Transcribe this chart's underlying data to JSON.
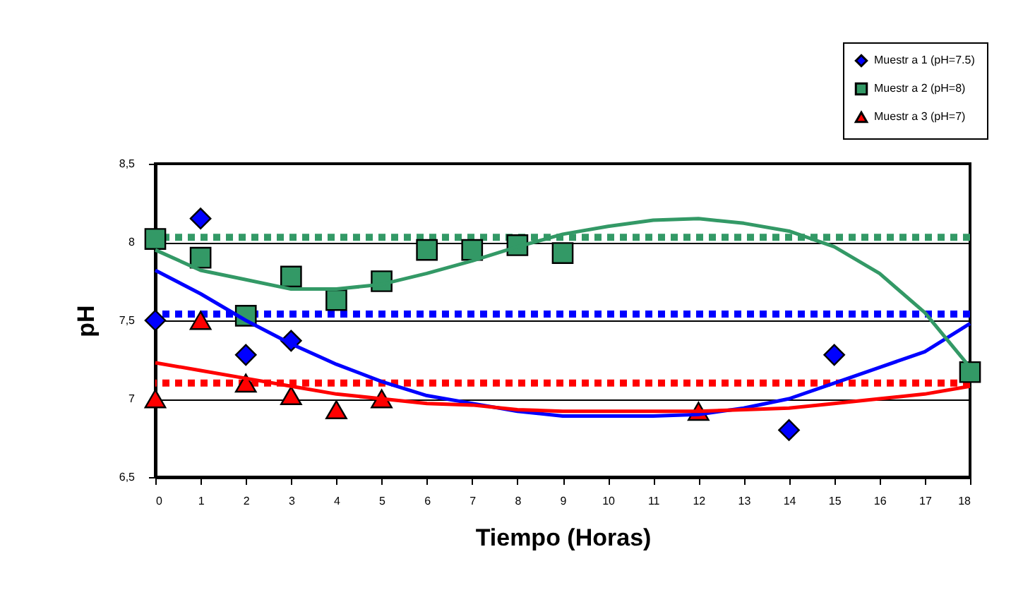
{
  "chart_data": {
    "type": "scatter",
    "xlabel": "Tiempo (Horas)",
    "ylabel": "pH",
    "xlim": [
      0,
      18
    ],
    "xticks": [
      0,
      1,
      2,
      3,
      4,
      5,
      6,
      7,
      8,
      9,
      10,
      11,
      12,
      13,
      14,
      15,
      16,
      17,
      18
    ],
    "ylim": [
      6.5,
      8.5
    ],
    "yticks": [
      {
        "value": 6.5,
        "label": "6,5"
      },
      7,
      {
        "value": 7.5,
        "label": "7,5"
      },
      8,
      {
        "value": 8.5,
        "label": "8,5"
      }
    ],
    "grid": "y",
    "legend": "top right",
    "series": [
      {
        "name": "Muestr a 1 (pH=7.5)",
        "color": "#0000ff",
        "marker": "diamond",
        "x": [
          0,
          1,
          2,
          3,
          14,
          15
        ],
        "values": [
          7.5,
          8.15,
          7.28,
          7.37,
          6.8,
          7.28
        ]
      },
      {
        "name": "Muestr a 2 (pH=8)",
        "color": "#339966",
        "marker": "square",
        "x": [
          0,
          1,
          2,
          3,
          4,
          5,
          6,
          7,
          8,
          9,
          18
        ],
        "values": [
          8.02,
          7.9,
          7.53,
          7.78,
          7.63,
          7.75,
          7.95,
          7.95,
          7.98,
          7.93,
          7.17
        ]
      },
      {
        "name": "Muestr a 3 (pH=7)",
        "color": "#ff0000",
        "marker": "triangle",
        "x": [
          0,
          1,
          2,
          3,
          4,
          5,
          12
        ],
        "values": [
          7.0,
          7.5,
          7.1,
          7.02,
          6.93,
          7.0,
          6.92
        ]
      },
      {
        "type": "line",
        "color": "#0000ff",
        "x": [
          0,
          1,
          2,
          3,
          4,
          5,
          6,
          7,
          8,
          9,
          10,
          11,
          12,
          13,
          14,
          15,
          16,
          17,
          18
        ],
        "values": [
          7.82,
          7.67,
          7.5,
          7.35,
          7.22,
          7.11,
          7.02,
          6.97,
          6.92,
          6.89,
          6.89,
          6.89,
          6.9,
          6.94,
          7.0,
          7.1,
          7.2,
          7.3,
          7.48
        ]
      },
      {
        "type": "line",
        "color": "#339966",
        "x": [
          0,
          1,
          2,
          3,
          4,
          5,
          6,
          7,
          8,
          9,
          10,
          11,
          12,
          13,
          14,
          15,
          16,
          17,
          18
        ],
        "values": [
          7.95,
          7.82,
          7.76,
          7.7,
          7.7,
          7.73,
          7.8,
          7.88,
          7.97,
          8.05,
          8.1,
          8.14,
          8.15,
          8.12,
          8.07,
          7.97,
          7.8,
          7.55,
          7.2
        ]
      },
      {
        "type": "line",
        "color": "#ff0000",
        "x": [
          0,
          1,
          2,
          3,
          4,
          5,
          6,
          7,
          8,
          9,
          10,
          11,
          12,
          13,
          14,
          15,
          16,
          17,
          18
        ],
        "values": [
          7.23,
          7.18,
          7.13,
          7.08,
          7.03,
          7.0,
          6.97,
          6.96,
          6.93,
          6.92,
          6.92,
          6.92,
          6.92,
          6.93,
          6.94,
          6.97,
          7.0,
          7.03,
          7.08
        ]
      }
    ],
    "ref_lines": [
      {
        "axis": "y",
        "value": 8.03,
        "color": "#339966",
        "line_style": "dotted"
      },
      {
        "axis": "y",
        "value": 7.54,
        "color": "#0000ff",
        "line_style": "dotted"
      },
      {
        "axis": "y",
        "value": 7.1,
        "color": "#ff0000",
        "line_style": "dotted"
      }
    ]
  }
}
